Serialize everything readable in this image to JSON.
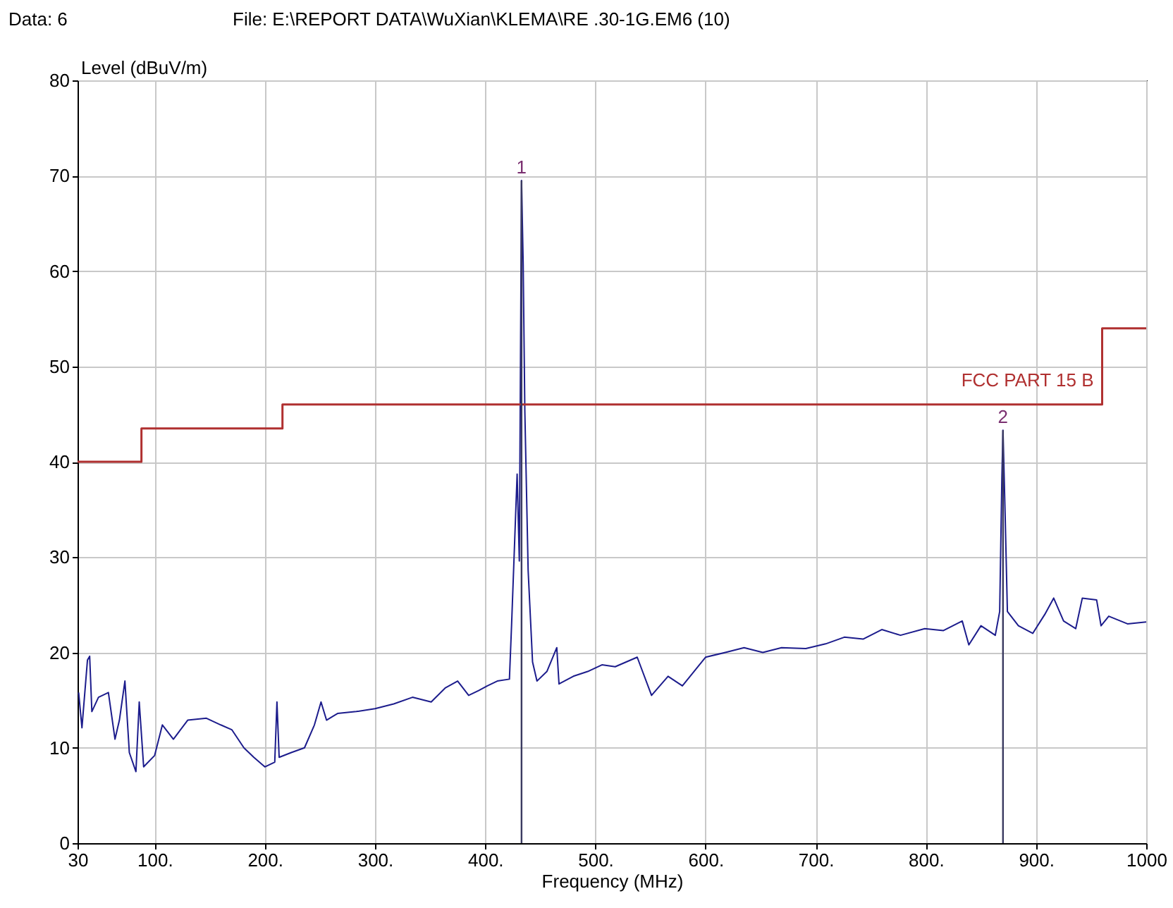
{
  "chart_data": {
    "type": "line",
    "title": "File: E:\\REPORT DATA\\WuXian\\KLEMA\\RE .30-1G.EM6  (10)",
    "xlabel": "Frequency (MHz)",
    "ylabel": "Level (dBuV/m)",
    "xlim": [
      30,
      1000
    ],
    "ylim": [
      0,
      80
    ],
    "xticks": [
      30,
      {
        "value": 100,
        "label": "100."
      },
      {
        "value": 200,
        "label": "200."
      },
      {
        "value": 300,
        "label": "300."
      },
      {
        "value": 400,
        "label": "400."
      },
      {
        "value": 500,
        "label": "500."
      },
      {
        "value": 600,
        "label": "600."
      },
      {
        "value": 700,
        "label": "700."
      },
      {
        "value": 800,
        "label": "800."
      },
      {
        "value": 900,
        "label": "900."
      },
      1000
    ],
    "yticks": [
      0,
      10,
      20,
      30,
      40,
      50,
      60,
      70,
      80
    ],
    "grid": true,
    "series": [
      {
        "color": "#1c1c8c",
        "x": [
          31,
          34,
          39,
          41,
          43,
          49,
          58,
          64,
          68,
          73,
          77,
          83,
          86,
          90,
          100,
          107,
          117,
          130,
          147,
          160,
          170,
          181,
          190,
          200,
          209,
          211,
          213,
          224,
          236,
          245,
          251,
          256,
          266,
          283,
          300,
          317,
          334,
          351,
          364,
          375,
          385,
          394,
          402,
          411,
          422,
          424,
          429,
          431,
          433,
          434.5,
          436,
          439,
          443,
          447,
          456,
          465,
          467,
          480,
          493,
          506,
          518,
          538,
          551,
          566,
          579,
          600,
          618,
          635,
          652,
          669,
          691,
          709,
          726,
          743,
          760,
          777,
          799,
          816,
          833,
          839,
          850,
          863,
          867,
          869,
          870,
          872,
          874,
          884,
          897,
          908,
          916,
          925,
          936,
          942,
          955,
          959,
          966,
          983,
          1000
        ],
        "values": [
          15.8,
          12.1,
          19.2,
          19.6,
          13.8,
          15.3,
          15.8,
          10.9,
          12.9,
          17,
          9.5,
          7.5,
          14.8,
          8,
          9.2,
          12.4,
          10.9,
          12.9,
          13.1,
          12.4,
          11.9,
          10,
          9,
          8,
          8.5,
          14.8,
          9,
          9.5,
          10,
          12.4,
          14.8,
          12.9,
          13.6,
          13.8,
          14.1,
          14.6,
          15.3,
          14.8,
          16.3,
          17,
          15.5,
          16,
          16.5,
          17,
          17.2,
          23,
          38.7,
          29.6,
          69.5,
          60.7,
          45.3,
          28.6,
          19,
          17,
          18,
          20.5,
          16.7,
          17.5,
          18,
          18.7,
          18.5,
          19.5,
          15.5,
          17.5,
          16.5,
          19.5,
          20,
          20.5,
          20,
          20.5,
          20.4,
          20.9,
          21.6,
          21.4,
          22.4,
          21.8,
          22.5,
          22.3,
          23.3,
          20.8,
          22.8,
          21.8,
          24.3,
          38.4,
          43.3,
          34.2,
          24.3,
          22.8,
          22,
          24,
          25.7,
          23.3,
          22.5,
          25.7,
          25.5,
          22.8,
          23.8,
          23,
          23.2
        ]
      },
      {
        "type": "step",
        "name": "FCC PART 15 B",
        "color": "#b03030",
        "x": [
          30,
          88,
          216,
          960,
          1000
        ],
        "values": [
          40,
          43.5,
          46,
          54,
          54
        ]
      }
    ],
    "ref_lines": [
      {
        "axis": "x",
        "value": 433
      },
      {
        "axis": "x",
        "value": 870
      }
    ],
    "annotations": [
      "Data: 6",
      {
        "text": "1",
        "x": 433,
        "y": 69.5
      },
      {
        "text": "2",
        "x": 870,
        "y": 43.3
      }
    ]
  }
}
